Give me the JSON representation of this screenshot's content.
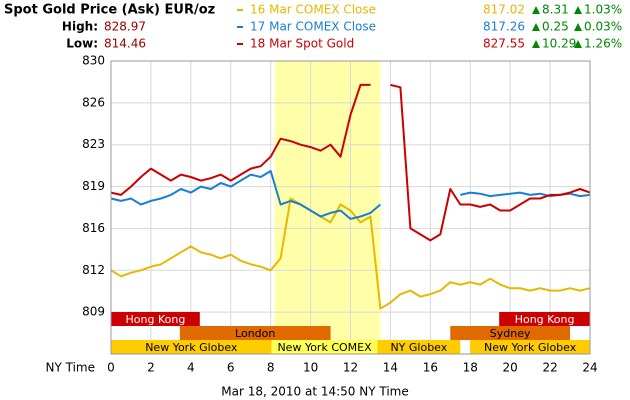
{
  "chart_data": {
    "type": "line",
    "title": "Spot Gold Price (Ask) EUR/oz",
    "high": {
      "label": "High:",
      "value": 828.97
    },
    "low": {
      "label": "Low:",
      "value": 814.46
    },
    "x_label": "NY Time",
    "footer": "Mar 18, 2010 at 14:50 NY Time",
    "xlim": [
      0,
      24
    ],
    "xticks": [
      0,
      2,
      4,
      6,
      8,
      10,
      12,
      14,
      16,
      18,
      20,
      22,
      24
    ],
    "ylim": [
      805.5,
      830
    ],
    "yticks": [
      809,
      {
        "value": 812.5,
        "label": "812"
      },
      816,
      {
        "value": 819.5,
        "label": "819"
      },
      823,
      {
        "value": 826.5,
        "label": "826"
      },
      830
    ],
    "grid": true,
    "highlight": {
      "start": 8.2,
      "end": 13.5,
      "color": "#ffffaa"
    },
    "sessions": [
      [
        {
          "label": "Hong Kong",
          "start": 0,
          "end": 4.45,
          "color": "#cc0000"
        },
        {
          "label": "Hong Kong",
          "start": 19.45,
          "end": 24,
          "color": "#cc0000"
        }
      ],
      [
        {
          "label": "London",
          "start": 3.45,
          "end": 11,
          "color": "#e06a00"
        },
        {
          "label": "Sydney",
          "start": 17,
          "end": 23,
          "color": "#e06a00"
        }
      ],
      [
        {
          "label": "New York Globex",
          "start": 0,
          "end": 8.05,
          "color": "#ffcc00"
        },
        {
          "label": "New York COMEX",
          "start": 8.05,
          "end": 13.35,
          "color": "#ffff55"
        },
        {
          "label": "NY Globex",
          "start": 13.35,
          "end": 17.5,
          "color": "#ffcc00"
        },
        {
          "label": "New York Globex",
          "start": 18,
          "end": 24,
          "color": "#ffcc00"
        }
      ]
    ],
    "x": [
      0,
      0.5,
      1,
      1.5,
      2,
      2.5,
      3,
      3.5,
      4,
      4.5,
      5,
      5.5,
      6,
      6.5,
      7,
      7.5,
      8,
      8.5,
      9,
      9.5,
      10,
      10.5,
      11,
      11.5,
      12,
      12.5,
      13,
      13.5,
      14,
      14.5,
      15,
      15.5,
      16,
      16.5,
      17,
      17.5,
      18,
      18.5,
      19,
      19.5,
      20,
      20.5,
      21,
      21.5,
      22,
      22.5,
      23,
      23.5,
      24
    ],
    "series": [
      {
        "name": "16 Mar COMEX Close",
        "color": "#e6b800",
        "close": 817.02,
        "change": 8.31,
        "change_pct": "1.03%",
        "values": [
          812.5,
          812.0,
          812.3,
          812.5,
          812.8,
          813.0,
          813.5,
          814.0,
          814.5,
          814.0,
          813.8,
          813.5,
          813.8,
          813.3,
          813.0,
          812.8,
          812.5,
          813.5,
          818.5,
          818.0,
          817.5,
          817.0,
          816.5,
          818.0,
          817.5,
          816.5,
          817.0,
          809.3,
          809.8,
          810.5,
          810.8,
          810.3,
          810.5,
          810.8,
          811.5,
          811.3,
          811.5,
          811.3,
          811.8,
          811.3,
          811.0,
          811.0,
          810.8,
          811.0,
          810.8,
          810.8,
          811.0,
          810.8,
          811.0
        ]
      },
      {
        "name": "17 Mar COMEX Close",
        "color": "#1a7fd4",
        "close": 817.26,
        "change": 0.25,
        "change_pct": "0.03%",
        "values": [
          818.5,
          818.3,
          818.5,
          818.0,
          818.3,
          818.5,
          818.8,
          819.3,
          819.0,
          819.5,
          819.3,
          819.8,
          819.5,
          820.0,
          820.5,
          820.3,
          820.8,
          818.0,
          818.3,
          818.0,
          817.5,
          817.0,
          817.3,
          817.5,
          816.8,
          817.0,
          817.3,
          818.0,
          null,
          null,
          null,
          null,
          null,
          null,
          null,
          818.8,
          819.0,
          818.9,
          818.7,
          818.8,
          818.9,
          819.0,
          818.8,
          818.9,
          818.7,
          818.8,
          818.9,
          818.7,
          818.8
        ]
      },
      {
        "name": "18 Mar Spot Gold",
        "color": "#cc0000",
        "close": 827.55,
        "change": 10.29,
        "change_pct": "1.26%",
        "values": [
          819.0,
          818.8,
          819.5,
          820.3,
          821.0,
          820.5,
          820.0,
          820.5,
          820.3,
          820.0,
          820.2,
          820.5,
          820.0,
          820.5,
          821.0,
          821.2,
          822.0,
          823.5,
          823.3,
          823.0,
          822.8,
          822.5,
          823.0,
          822.0,
          825.5,
          828.0,
          828.0,
          null,
          828.0,
          827.8,
          816.0,
          815.5,
          815.0,
          815.5,
          819.3,
          818.0,
          818.0,
          817.8,
          818.0,
          817.5,
          817.5,
          818.0,
          818.5,
          818.5,
          818.8,
          818.8,
          819.0,
          819.3,
          819.0
        ]
      }
    ]
  }
}
